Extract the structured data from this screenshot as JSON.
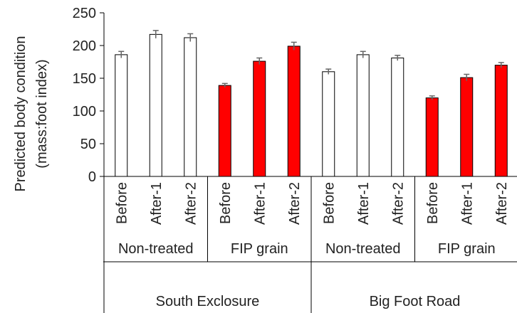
{
  "chart_data": {
    "type": "bar",
    "title": "",
    "ylabel": [
      "Predicted body condition",
      "(mass:foot index)"
    ],
    "ylim": [
      0,
      250
    ],
    "yticks": [
      0,
      50,
      100,
      150,
      200,
      250
    ],
    "grid": false,
    "legend": "none",
    "categories": [
      "Before",
      "After-1",
      "After-2",
      "Before",
      "After-1",
      "After-2",
      "Before",
      "After-1",
      "After-2",
      "Before",
      "After-1",
      "After-2"
    ],
    "treatment_groups": [
      "Non-treated",
      "FIP grain",
      "Non-treated",
      "FIP grain"
    ],
    "site_groups": [
      "South Exclosure",
      "Big Foot Road"
    ],
    "values": [
      186,
      217,
      212,
      139,
      176,
      199,
      160,
      186,
      181,
      120,
      151,
      170
    ],
    "errors": [
      5,
      6,
      6,
      3,
      5,
      6,
      4,
      5,
      4,
      3,
      5,
      4
    ],
    "bar_treatment": [
      "Non-treated",
      "Non-treated",
      "Non-treated",
      "FIP grain",
      "FIP grain",
      "FIP grain",
      "Non-treated",
      "Non-treated",
      "Non-treated",
      "FIP grain",
      "FIP grain",
      "FIP grain"
    ],
    "colors": {
      "Non-treated": "#ffffff",
      "FIP grain": "#ff0000",
      "bar_edge": "#000000",
      "axis": "#000000",
      "error": "#666666"
    }
  }
}
